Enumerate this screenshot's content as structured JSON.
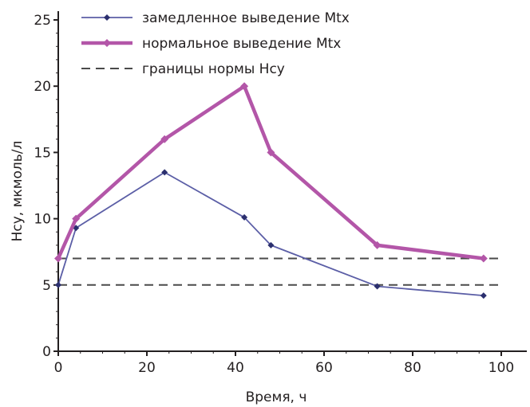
{
  "chart_data": {
    "type": "line",
    "title": "",
    "xlabel": "Время, ч",
    "ylabel": "Hcy,  мкмоль/л",
    "xlim": [
      0,
      100
    ],
    "ylim": [
      0,
      25
    ],
    "xticks": [
      0,
      20,
      40,
      60,
      80,
      100
    ],
    "yticks": [
      0,
      5,
      10,
      15,
      20,
      25
    ],
    "grid": false,
    "legend_position": "top-left",
    "series": [
      {
        "name": "замедленное выведение Mtx",
        "color": "#5b5ea6",
        "marker": "diamond",
        "style": "solid",
        "x": [
          0,
          4,
          24,
          42,
          48,
          72,
          96
        ],
        "y": [
          5.0,
          9.3,
          13.5,
          10.1,
          8.0,
          4.9,
          4.2
        ]
      },
      {
        "name": "нормальное выведение Mtx",
        "color": "#b356a8",
        "marker": "diamond",
        "style": "solid",
        "x": [
          0,
          4,
          24,
          42,
          48,
          72,
          96
        ],
        "y": [
          7.0,
          10.0,
          16.0,
          20.0,
          15.0,
          8.0,
          7.0
        ]
      },
      {
        "name": "границы нормы Hcy",
        "color": "#4a4a4a",
        "marker": "none",
        "style": "dashed",
        "x": [
          0,
          100
        ],
        "y_lines": [
          5,
          7
        ]
      }
    ]
  }
}
